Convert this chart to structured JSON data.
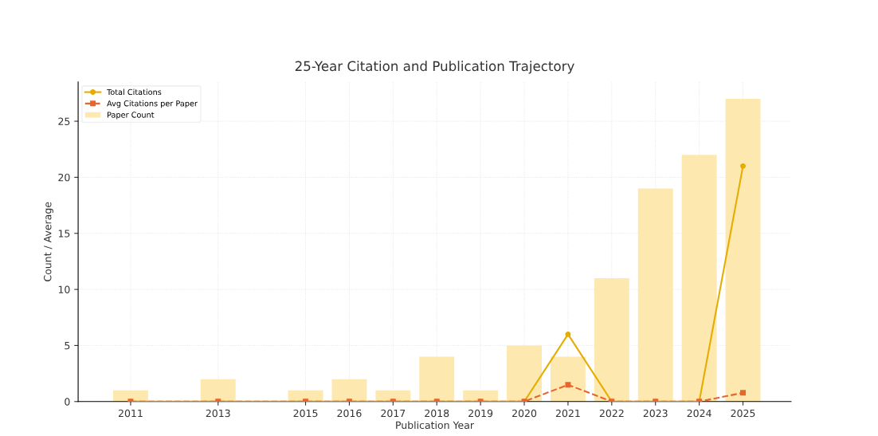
{
  "chart_data": {
    "type": "bar",
    "title": "25-Year Citation and Publication Trajectory",
    "xlabel": "Publication Year",
    "ylabel": "Count / Average",
    "x": [
      2011,
      2013,
      2015,
      2016,
      2017,
      2018,
      2019,
      2020,
      2021,
      2022,
      2023,
      2024,
      2025
    ],
    "series": [
      {
        "name": "Total Citations",
        "type": "line",
        "color": "#e6ac00",
        "marker": "circle",
        "line_style": "solid",
        "values": [
          0,
          0,
          0,
          0,
          0,
          0,
          0,
          0,
          6,
          0,
          0,
          0,
          21
        ]
      },
      {
        "name": "Avg Citations per Paper",
        "type": "line",
        "color": "#e8652e",
        "marker": "square",
        "line_style": "dashed",
        "values": [
          0,
          0,
          0,
          0,
          0,
          0,
          0,
          0,
          1.5,
          0,
          0,
          0,
          0.78
        ]
      },
      {
        "name": "Paper Count",
        "color": "#fde8b0",
        "values": [
          1,
          2,
          1,
          2,
          1,
          4,
          1,
          5,
          4,
          11,
          19,
          22,
          27
        ]
      }
    ],
    "xlim": [
      2009.8,
      2026.1
    ],
    "xticks": [
      2011,
      2013,
      2015,
      2016,
      2017,
      2018,
      2019,
      2020,
      2021,
      2022,
      2023,
      2024,
      2025
    ],
    "ylim": [
      0,
      28.5
    ],
    "yticks": [
      0,
      5,
      10,
      15,
      20,
      25
    ],
    "grid": true,
    "legend": "top left"
  }
}
